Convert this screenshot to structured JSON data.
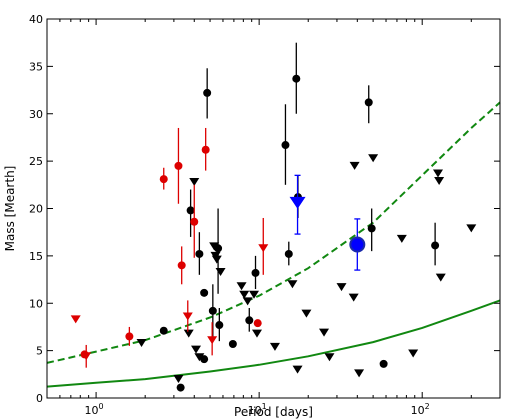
{
  "chart_data": {
    "type": "scatter",
    "xlabel": "Period [days]",
    "ylabel": "Mass [Mearth]",
    "xscale": "log",
    "xlim": [
      0.5,
      300
    ],
    "ylim": [
      0,
      40
    ],
    "grid": false,
    "legend": "none",
    "x_ticks": [
      {
        "value": 1,
        "base": "10",
        "exp": "0"
      },
      {
        "value": 10,
        "base": "10",
        "exp": "1"
      },
      {
        "value": 100,
        "base": "10",
        "exp": "2"
      }
    ],
    "y_ticks": [
      0,
      5,
      10,
      15,
      20,
      25,
      30,
      35,
      40
    ],
    "colors": {
      "black": "#000000",
      "red": "#dd0000",
      "blue": "#0000ff",
      "green": "#118811"
    },
    "curves": [
      {
        "style": "dashed",
        "color": "#118811",
        "points": [
          [
            0.5,
            3.7
          ],
          [
            1,
            4.9
          ],
          [
            2,
            6.1
          ],
          [
            5,
            8.5
          ],
          [
            10,
            10.8
          ],
          [
            20,
            13.7
          ],
          [
            50,
            18.5
          ],
          [
            100,
            23.5
          ],
          [
            200,
            28.5
          ],
          [
            300,
            31.2
          ]
        ]
      },
      {
        "style": "solid",
        "color": "#118811",
        "points": [
          [
            0.5,
            1.2
          ],
          [
            1,
            1.6
          ],
          [
            2,
            2.0
          ],
          [
            5,
            2.8
          ],
          [
            10,
            3.5
          ],
          [
            20,
            4.4
          ],
          [
            50,
            5.9
          ],
          [
            100,
            7.4
          ],
          [
            200,
            9.2
          ],
          [
            300,
            10.3
          ]
        ]
      }
    ],
    "series": [
      {
        "marker": "circle",
        "color": "#000000",
        "points": [
          {
            "x": 2.6,
            "y": 7.1
          },
          {
            "x": 3.3,
            "y": 1.1
          },
          {
            "x": 3.8,
            "y": 19.8,
            "ylo": 17.0,
            "yhi": 22.0
          },
          {
            "x": 4.3,
            "y": 15.2,
            "ylo": 13.0,
            "yhi": 17.5
          },
          {
            "x": 4.6,
            "y": 4.1
          },
          {
            "x": 4.6,
            "y": 11.1
          },
          {
            "x": 4.8,
            "y": 32.2,
            "ylo": 29.5,
            "yhi": 34.8
          },
          {
            "x": 5.2,
            "y": 9.2,
            "ylo": 6.3,
            "yhi": 12.0
          },
          {
            "x": 5.6,
            "y": 15.8,
            "ylo": 11.0,
            "yhi": 20.0
          },
          {
            "x": 5.7,
            "y": 7.7,
            "ylo": 6.0,
            "yhi": 9.5
          },
          {
            "x": 6.9,
            "y": 5.7
          },
          {
            "x": 8.7,
            "y": 8.2,
            "ylo": 7.0,
            "yhi": 9.5
          },
          {
            "x": 9.5,
            "y": 13.2,
            "ylo": 11.5,
            "yhi": 15.0
          },
          {
            "x": 14.5,
            "y": 26.7,
            "ylo": 22.5,
            "yhi": 31.0
          },
          {
            "x": 15.2,
            "y": 15.2,
            "ylo": 14.0,
            "yhi": 16.5
          },
          {
            "x": 16.9,
            "y": 33.7,
            "ylo": 30.0,
            "yhi": 37.5
          },
          {
            "x": 17.3,
            "y": 21.2,
            "ylo": 19.0,
            "yhi": 23.5
          },
          {
            "x": 47.0,
            "y": 31.2,
            "ylo": 29.0,
            "yhi": 33.0
          },
          {
            "x": 49.0,
            "y": 17.9,
            "ylo": 15.5,
            "yhi": 20.0
          },
          {
            "x": 58.0,
            "y": 3.6
          },
          {
            "x": 120.0,
            "y": 16.1,
            "ylo": 14.0,
            "yhi": 18.5
          }
        ]
      },
      {
        "marker": "triangle-down",
        "color": "#000000",
        "points": [
          {
            "x": 1.9,
            "y": 5.8
          },
          {
            "x": 3.2,
            "y": 2.0
          },
          {
            "x": 3.7,
            "y": 6.8
          },
          {
            "x": 4.0,
            "y": 22.8
          },
          {
            "x": 4.1,
            "y": 5.1
          },
          {
            "x": 4.3,
            "y": 4.3
          },
          {
            "x": 5.3,
            "y": 16.0
          },
          {
            "x": 5.4,
            "y": 15.0
          },
          {
            "x": 5.5,
            "y": 14.6
          },
          {
            "x": 5.8,
            "y": 13.3
          },
          {
            "x": 7.8,
            "y": 11.8
          },
          {
            "x": 8.1,
            "y": 10.9
          },
          {
            "x": 8.5,
            "y": 10.2
          },
          {
            "x": 9.3,
            "y": 10.9
          },
          {
            "x": 9.7,
            "y": 6.8
          },
          {
            "x": 12.5,
            "y": 5.4
          },
          {
            "x": 16.0,
            "y": 12.0
          },
          {
            "x": 17.2,
            "y": 3.0
          },
          {
            "x": 19.5,
            "y": 8.9
          },
          {
            "x": 25.0,
            "y": 6.9
          },
          {
            "x": 27.0,
            "y": 4.3
          },
          {
            "x": 32.0,
            "y": 11.7
          },
          {
            "x": 38.0,
            "y": 10.6
          },
          {
            "x": 38.5,
            "y": 24.5
          },
          {
            "x": 41.0,
            "y": 2.6
          },
          {
            "x": 50.0,
            "y": 25.3
          },
          {
            "x": 75.0,
            "y": 16.8
          },
          {
            "x": 88.0,
            "y": 4.7
          },
          {
            "x": 125.0,
            "y": 23.7
          },
          {
            "x": 127.0,
            "y": 22.9
          },
          {
            "x": 130.0,
            "y": 12.7
          },
          {
            "x": 200.0,
            "y": 17.9
          }
        ]
      },
      {
        "marker": "circle",
        "color": "#dd0000",
        "points": [
          {
            "x": 0.85,
            "y": 4.6
          },
          {
            "x": 1.6,
            "y": 6.5,
            "ylo": 5.5,
            "yhi": 7.5
          },
          {
            "x": 2.6,
            "y": 23.1,
            "ylo": 22.0,
            "yhi": 24.3
          },
          {
            "x": 3.2,
            "y": 24.5,
            "ylo": 20.5,
            "yhi": 28.5
          },
          {
            "x": 3.35,
            "y": 14.0,
            "ylo": 12.0,
            "yhi": 16.0
          },
          {
            "x": 4.0,
            "y": 18.6,
            "ylo": 14.8,
            "yhi": 22.5
          },
          {
            "x": 4.7,
            "y": 26.2,
            "ylo": 24.0,
            "yhi": 28.5
          },
          {
            "x": 9.8,
            "y": 7.9
          }
        ]
      },
      {
        "marker": "triangle-down",
        "color": "#dd0000",
        "points": [
          {
            "x": 0.75,
            "y": 8.3
          },
          {
            "x": 0.87,
            "y": 4.4,
            "ylo": 3.2,
            "yhi": 5.6
          },
          {
            "x": 3.65,
            "y": 8.6,
            "ylo": 7.0,
            "yhi": 10.3
          },
          {
            "x": 5.15,
            "y": 6.1,
            "ylo": 4.5,
            "yhi": 8.0
          },
          {
            "x": 10.6,
            "y": 15.8,
            "ylo": 13.0,
            "yhi": 19.0
          }
        ]
      },
      {
        "marker": "triangle-down",
        "color": "#0000ff",
        "size": "large",
        "points": [
          {
            "x": 17.2,
            "y": 20.6,
            "ylo": 17.3,
            "yhi": 23.5
          }
        ]
      },
      {
        "marker": "circle",
        "color": "#0000ff",
        "size": "large",
        "points": [
          {
            "x": 40.0,
            "y": 16.2,
            "ylo": 13.5,
            "yhi": 18.9
          }
        ]
      }
    ]
  }
}
